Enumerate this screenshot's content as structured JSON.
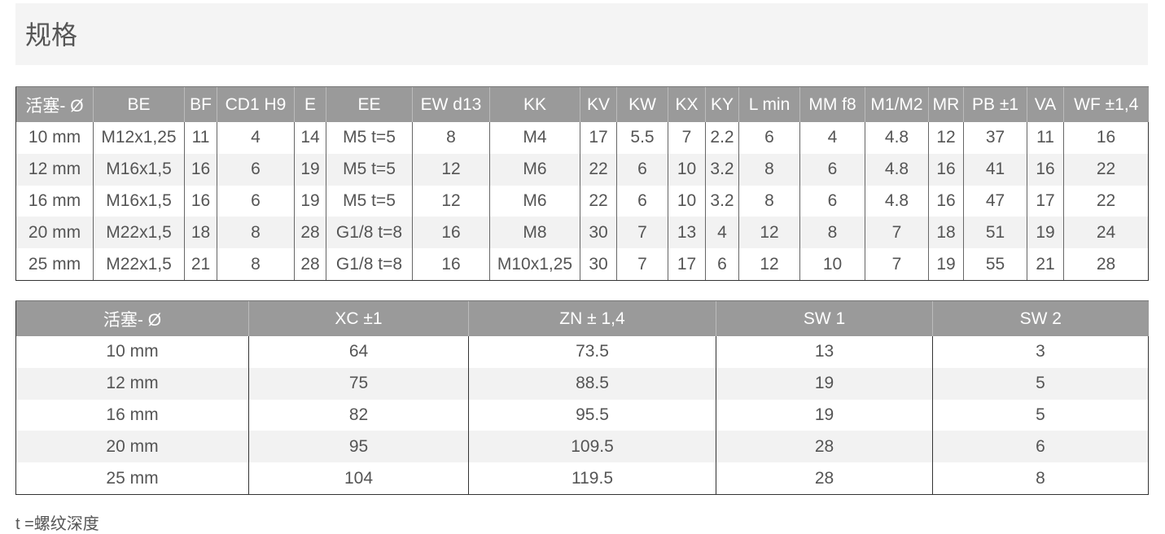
{
  "title": "规格",
  "table1": {
    "headers": [
      "活塞- Ø",
      "BE",
      "BF",
      "CD1 H9",
      "E",
      "EE",
      "EW d13",
      "KK",
      "KV",
      "KW",
      "KX",
      "KY",
      "L min",
      "MM f8",
      "M1/M2",
      "MR",
      "PB ±1",
      "VA",
      "WF ±1,4"
    ],
    "rows": [
      [
        "10 mm",
        "M12x1,25",
        "11",
        "4",
        "14",
        "M5 t=5",
        "8",
        "M4",
        "17",
        "5.5",
        "7",
        "2.2",
        "6",
        "4",
        "4.8",
        "12",
        "37",
        "11",
        "16"
      ],
      [
        "12 mm",
        "M16x1,5",
        "16",
        "6",
        "19",
        "M5 t=5",
        "12",
        "M6",
        "22",
        "6",
        "10",
        "3.2",
        "8",
        "6",
        "4.8",
        "16",
        "41",
        "16",
        "22"
      ],
      [
        "16 mm",
        "M16x1,5",
        "16",
        "6",
        "19",
        "M5 t=5",
        "12",
        "M6",
        "22",
        "6",
        "10",
        "3.2",
        "8",
        "6",
        "4.8",
        "16",
        "47",
        "17",
        "22"
      ],
      [
        "20 mm",
        "M22x1,5",
        "18",
        "8",
        "28",
        "G1/8 t=8",
        "16",
        "M8",
        "30",
        "7",
        "13",
        "4",
        "12",
        "8",
        "7",
        "18",
        "51",
        "19",
        "24"
      ],
      [
        "25 mm",
        "M22x1,5",
        "21",
        "8",
        "28",
        "G1/8 t=8",
        "16",
        "M10x1,25",
        "30",
        "7",
        "17",
        "6",
        "12",
        "10",
        "7",
        "19",
        "55",
        "21",
        "28"
      ]
    ]
  },
  "table2": {
    "headers": [
      "活塞- Ø",
      "XC ±1",
      "ZN ± 1,4",
      "SW 1",
      "SW 2"
    ],
    "rows": [
      [
        "10 mm",
        "64",
        "73.5",
        "13",
        "3"
      ],
      [
        "12 mm",
        "75",
        "88.5",
        "19",
        "5"
      ],
      [
        "16 mm",
        "82",
        "95.5",
        "19",
        "5"
      ],
      [
        "20 mm",
        "95",
        "109.5",
        "28",
        "6"
      ],
      [
        "25 mm",
        "104",
        "119.5",
        "28",
        "8"
      ]
    ]
  },
  "note": "t =螺纹深度",
  "colors": {
    "header_bg": "#9a9a9a",
    "stripe": "#f2f2f2",
    "title_bg": "#f4f4f4",
    "text": "#555555"
  }
}
